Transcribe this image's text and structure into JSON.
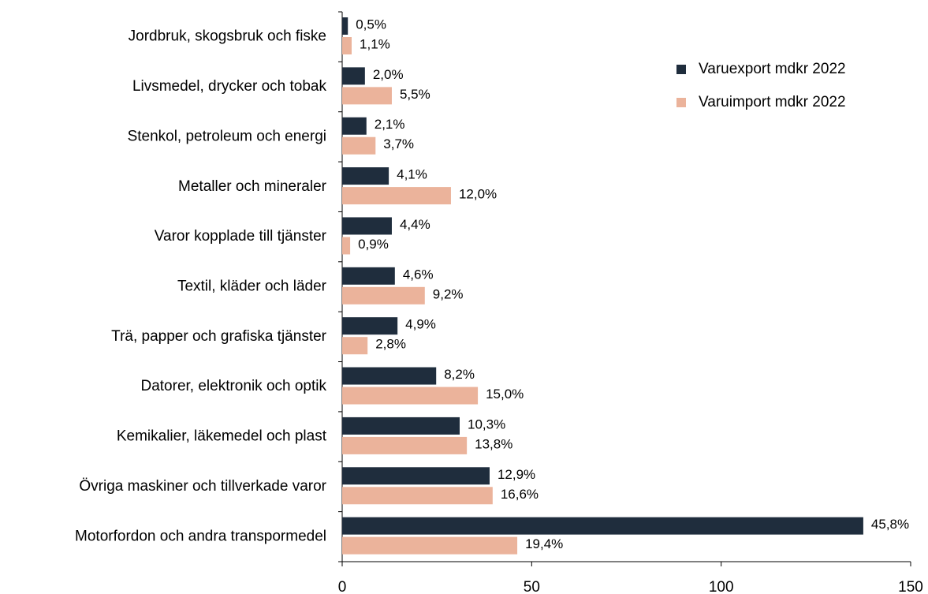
{
  "chart_data": {
    "type": "barh",
    "categories": [
      "Jordbruk, skogsbruk och fiske",
      "Livsmedel, drycker och tobak",
      "Stenkol, petroleum och energi",
      "Metaller och mineraler",
      "Varor kopplade till tjänster",
      "Textil, kläder och läder",
      "Trä, papper och grafiska tjänster",
      "Datorer, elektronik och optik",
      "Kemikalier, läkemedel och plast",
      "Övriga maskiner och tillverkade varor",
      "Motorfordon och andra transpormedel"
    ],
    "series": [
      {
        "name": "Varuexport mdkr 2022",
        "color": "#1f2d3d",
        "values": [
          1.5,
          6.0,
          6.4,
          12.3,
          13.1,
          13.9,
          14.6,
          24.8,
          31.0,
          38.9,
          137.5
        ],
        "share_labels": [
          "0,5%",
          "2,0%",
          "2,1%",
          "4,1%",
          "4,4%",
          "4,6%",
          "4,9%",
          "8,2%",
          "10,3%",
          "12,9%",
          "45,8%"
        ]
      },
      {
        "name": "Varuimport mdkr 2022",
        "color": "#ebb39b",
        "values": [
          2.5,
          13.1,
          8.8,
          28.7,
          2.1,
          21.8,
          6.7,
          35.8,
          32.9,
          39.7,
          46.2
        ],
        "share_labels": [
          "1,1%",
          "5,5%",
          "3,7%",
          "12,0%",
          "0,9%",
          "9,2%",
          "2,8%",
          "15,0%",
          "13,8%",
          "16,6%",
          "19,4%"
        ]
      }
    ],
    "xlim": [
      0,
      150
    ],
    "xticks": [
      0,
      50,
      100,
      150
    ],
    "legend": "upper right"
  }
}
